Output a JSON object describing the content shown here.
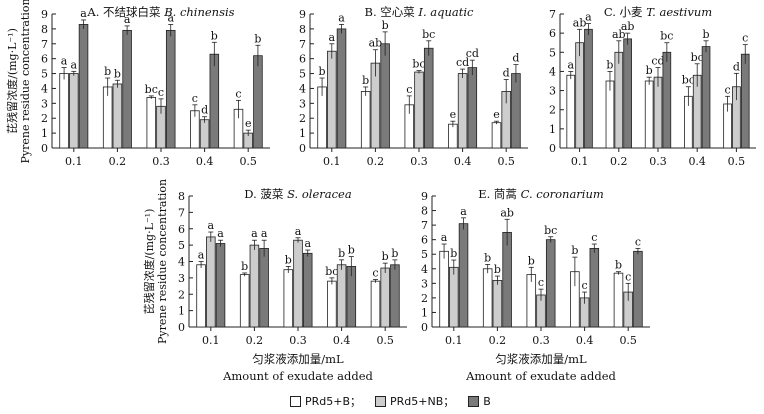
{
  "chart_data": [
    {
      "type": "bar",
      "panel": "A",
      "title": "A. 不结球白菜 B. chinensis",
      "ylabel_cn": "芘残留浓度/(mg·L⁻¹)",
      "ylabel_en": "Pyrene residue concentration",
      "xlabel_cn": "",
      "xlabel_en": "",
      "categories": [
        "0.1",
        "0.2",
        "0.3",
        "0.4",
        "0.5"
      ],
      "ylim": [
        0,
        9
      ],
      "yticks": [
        "0",
        "1",
        "2",
        "3",
        "4",
        "5",
        "6",
        "7",
        "8",
        "9"
      ],
      "series": [
        {
          "name": "PRd5+B",
          "values": [
            5.0,
            4.1,
            3.4,
            2.5,
            2.6
          ],
          "errors": [
            0.4,
            0.6,
            0.1,
            0.4,
            0.6
          ],
          "letters": [
            "a",
            "b",
            "bc",
            "c",
            "c"
          ]
        },
        {
          "name": "PRd5+NB",
          "values": [
            5.0,
            4.3,
            2.8,
            1.9,
            1.0
          ],
          "errors": [
            0.15,
            0.25,
            0.5,
            0.2,
            0.2
          ],
          "letters": [
            "a",
            "b",
            "c",
            "d",
            "e"
          ]
        },
        {
          "name": "B",
          "values": [
            8.3,
            7.9,
            7.9,
            6.3,
            6.2
          ],
          "errors": [
            0.3,
            0.3,
            0.4,
            0.8,
            0.7
          ],
          "letters": [
            "a",
            "a",
            "a",
            "b",
            "b"
          ]
        }
      ]
    },
    {
      "type": "bar",
      "panel": "B",
      "title": "B. 空心菜 I. aquatic",
      "xlabel_cn": "",
      "xlabel_en": "",
      "categories": [
        "0.1",
        "0.2",
        "0.3",
        "0.4",
        "0.5"
      ],
      "ylim": [
        0,
        9
      ],
      "yticks": [
        "0",
        "1",
        "2",
        "3",
        "4",
        "5",
        "6",
        "7",
        "8",
        "9"
      ],
      "series": [
        {
          "name": "PRd5+B",
          "values": [
            4.1,
            3.8,
            2.9,
            1.6,
            1.7
          ],
          "errors": [
            0.6,
            0.3,
            0.6,
            0.2,
            0.1
          ],
          "letters": [
            "b",
            "b",
            "c",
            "e",
            "e"
          ]
        },
        {
          "name": "PRd5+NB",
          "values": [
            6.5,
            5.7,
            5.1,
            5.0,
            3.8
          ],
          "errors": [
            0.5,
            0.9,
            0.1,
            0.3,
            0.8
          ],
          "letters": [
            "a",
            "ab",
            "bc",
            "cd",
            "d"
          ]
        },
        {
          "name": "B",
          "values": [
            8.0,
            7.0,
            6.7,
            5.4,
            5.0
          ],
          "errors": [
            0.3,
            0.8,
            0.5,
            0.5,
            0.6
          ],
          "letters": [
            "a",
            "b",
            "bc",
            "cd",
            "d"
          ]
        }
      ]
    },
    {
      "type": "bar",
      "panel": "C",
      "title": "C. 小麦 T. aestivum",
      "xlabel_cn": "",
      "xlabel_en": "",
      "categories": [
        "0.1",
        "0.2",
        "0.3",
        "0.4",
        "0.5"
      ],
      "ylim": [
        0,
        7
      ],
      "yticks": [
        "0",
        "1",
        "2",
        "3",
        "4",
        "5",
        "6",
        "7"
      ],
      "series": [
        {
          "name": "PRd5+B",
          "values": [
            3.8,
            3.5,
            3.5,
            2.7,
            2.3
          ],
          "errors": [
            0.2,
            0.5,
            0.2,
            0.5,
            0.4
          ],
          "letters": [
            "a",
            "b",
            "b",
            "bc",
            "c"
          ]
        },
        {
          "name": "PRd5+NB",
          "values": [
            5.5,
            5.0,
            3.7,
            3.8,
            3.2
          ],
          "errors": [
            0.7,
            0.6,
            0.5,
            0.6,
            0.7
          ],
          "letters": [
            "ab",
            "ab",
            "cd",
            "bc",
            "d"
          ]
        },
        {
          "name": "B",
          "values": [
            6.2,
            5.7,
            5.0,
            5.3,
            4.9
          ],
          "errors": [
            0.3,
            0.3,
            0.5,
            0.3,
            0.5
          ],
          "letters": [
            "a",
            "ab",
            "bc",
            "b",
            "c"
          ]
        }
      ]
    },
    {
      "type": "bar",
      "panel": "D",
      "title": "D. 菠菜 S. oleracea",
      "ylabel_cn": "芘残留浓度/(mg·L⁻¹)",
      "ylabel_en": "Pyrene residue concentration",
      "xlabel_cn": "匀浆液添加量/mL",
      "xlabel_en": "Amount of exudate added",
      "categories": [
        "0.1",
        "0.2",
        "0.3",
        "0.4",
        "0.5"
      ],
      "ylim": [
        0,
        8
      ],
      "yticks": [
        "0",
        "1",
        "2",
        "3",
        "4",
        "5",
        "6",
        "7",
        "8"
      ],
      "series": [
        {
          "name": "PRd5+B",
          "values": [
            3.8,
            3.2,
            3.5,
            2.8,
            2.8
          ],
          "errors": [
            0.2,
            0.1,
            0.2,
            0.2,
            0.1
          ],
          "letters": [
            "a",
            "b",
            "b",
            "bc",
            "c"
          ]
        },
        {
          "name": "PRd5+NB",
          "values": [
            5.5,
            5.0,
            5.3,
            3.8,
            3.6
          ],
          "errors": [
            0.3,
            0.3,
            0.15,
            0.3,
            0.3
          ],
          "letters": [
            "a",
            "a",
            "a",
            "b",
            "b"
          ]
        },
        {
          "name": "B",
          "values": [
            5.1,
            4.8,
            4.5,
            3.7,
            3.8
          ],
          "errors": [
            0.2,
            0.5,
            0.2,
            0.6,
            0.3
          ],
          "letters": [
            "a",
            "a",
            "a",
            "b",
            "b"
          ]
        }
      ]
    },
    {
      "type": "bar",
      "panel": "E",
      "title": "E. 茼蒿 C. coronarium",
      "xlabel_cn": "匀浆液添加量/mL",
      "xlabel_en": "Amount of exudate added",
      "categories": [
        "0.1",
        "0.2",
        "0.3",
        "0.4",
        "0.5"
      ],
      "ylim": [
        0,
        9
      ],
      "yticks": [
        "0",
        "1",
        "2",
        "3",
        "4",
        "5",
        "6",
        "7",
        "8",
        "9"
      ],
      "series": [
        {
          "name": "PRd5+B",
          "values": [
            5.2,
            4.0,
            3.6,
            3.8,
            3.7
          ],
          "errors": [
            0.5,
            0.3,
            0.5,
            1.0,
            0.1
          ],
          "letters": [
            "a",
            "b",
            "b",
            "b",
            "b"
          ]
        },
        {
          "name": "PRd5+NB",
          "values": [
            4.1,
            3.2,
            2.2,
            2.0,
            2.4
          ],
          "errors": [
            0.5,
            0.3,
            0.4,
            0.4,
            0.6
          ],
          "letters": [
            "b",
            "b",
            "c",
            "c",
            "c"
          ]
        },
        {
          "name": "B",
          "values": [
            7.1,
            6.5,
            6.0,
            5.4,
            5.2
          ],
          "errors": [
            0.4,
            0.9,
            0.2,
            0.3,
            0.2
          ],
          "letters": [
            "a",
            "ab",
            "bc",
            "c",
            "c"
          ]
        }
      ]
    }
  ],
  "legend": {
    "items": [
      "PRd5+B；",
      "PRd5+NB；",
      "B"
    ]
  },
  "colors": {
    "series": [
      "#ffffff",
      "#cdcdcd",
      "#7a7a7a"
    ],
    "stroke": "#222222"
  }
}
